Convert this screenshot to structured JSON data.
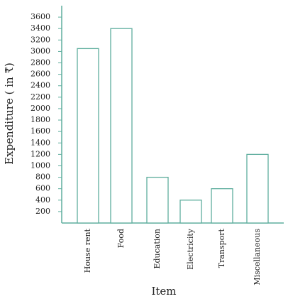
{
  "chart_data": {
    "type": "bar",
    "x_label": "Item",
    "y_label": "Expenditure ( in ₹)",
    "categories": [
      "House rent",
      "Food",
      "Education",
      "Electricity",
      "Transport",
      "Miscellaneous"
    ],
    "values": [
      3050,
      3400,
      800,
      400,
      600,
      1200
    ],
    "color": "#5fae9e",
    "ylim": [
      0,
      3800
    ],
    "yticks": [
      200,
      400,
      600,
      800,
      1000,
      1200,
      1400,
      1600,
      1800,
      2000,
      2200,
      2400,
      2600,
      2800,
      3000,
      3200,
      3400,
      3600
    ]
  }
}
